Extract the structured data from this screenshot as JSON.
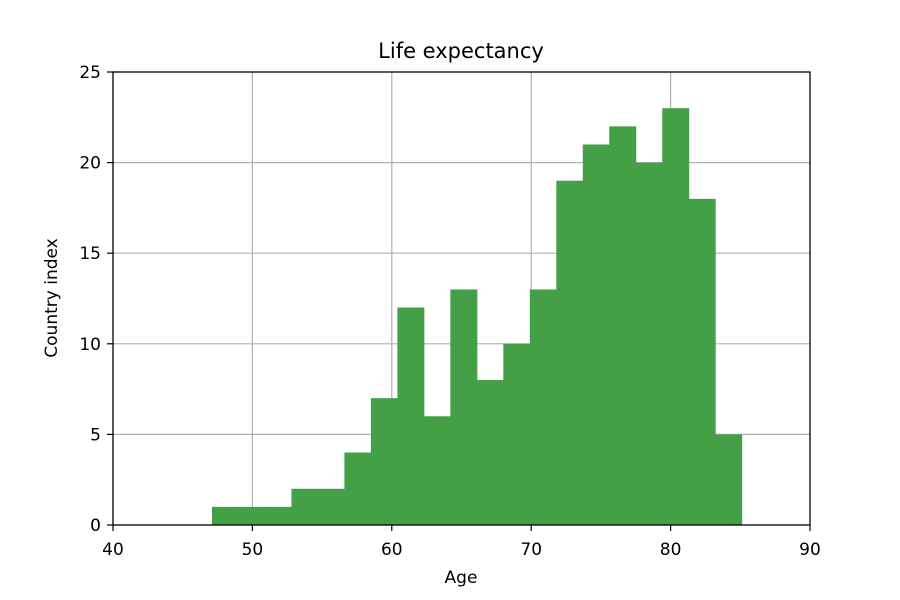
{
  "chart_data": {
    "type": "bar",
    "title": "Life expectancy",
    "xlabel": "Age",
    "ylabel": "Country index",
    "xlim": [
      40,
      90
    ],
    "ylim": [
      0,
      25
    ],
    "xticks": [
      40,
      50,
      60,
      70,
      80,
      90
    ],
    "yticks": [
      0,
      5,
      10,
      15,
      20,
      25
    ],
    "grid": true,
    "bar_color": "#43a047",
    "bin_edges": [
      47.1,
      49.0,
      50.9,
      52.8,
      54.7,
      56.6,
      58.5,
      60.4,
      62.3,
      64.2,
      66.1,
      68.0,
      69.9,
      71.8,
      73.7,
      75.6,
      77.5,
      79.4,
      81.3,
      83.2,
      85.1
    ],
    "values": [
      1,
      1,
      1,
      2,
      2,
      4,
      7,
      12,
      6,
      13,
      8,
      10,
      13,
      19,
      21,
      22,
      20,
      23,
      18,
      5
    ]
  }
}
